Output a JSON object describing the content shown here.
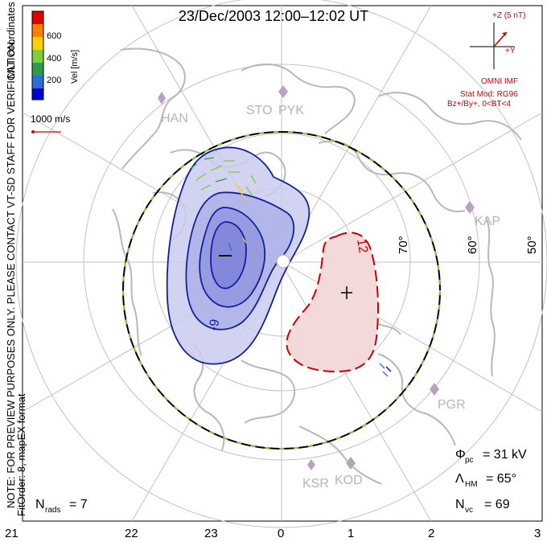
{
  "title": "23/Dec/2003 12:00–12:02 UT",
  "side_note": "NOTE: FOR PREVIEW PURPOSES ONLY. PLEASE CONTACT VT-SD STAFF FOR VERIFICATION.",
  "side_fit": "FitOrder: 8, mapEX format",
  "coords_label": "MLT coordinates",
  "colorbar": {
    "label": "Vel [m/s]",
    "ticks": [
      "600",
      "400",
      "200"
    ],
    "colors": [
      "#e00000",
      "#ff7f00",
      "#ffd000",
      "#7ecf3a",
      "#2e9a4a",
      "#2b6fd6",
      "#0000cc"
    ]
  },
  "scale_vector": {
    "label": "1000 m/s",
    "color": "#d40000"
  },
  "imf": {
    "clock_label": "+Z (5 nT)",
    "y_label": "+Y",
    "source": "OMNI IMF",
    "model": "Stat Mod: RG96",
    "conditions": "Bz+/By+, 0<BT<4"
  },
  "latitudes": [
    "70°",
    "60°",
    "50°"
  ],
  "mlt_axis": [
    "21",
    "22",
    "23",
    "0",
    "1",
    "2",
    "3"
  ],
  "stations": [
    "HAN",
    "STO",
    "PYK",
    "KAP",
    "PGR",
    "KSR",
    "KOD"
  ],
  "contour_labels": {
    "negative": "-9",
    "positive": "12"
  },
  "stats": {
    "phi_symbol": "Φ",
    "phi_sub": "pc",
    "phi_value": "= 31 kV",
    "lambda_symbol": "Λ",
    "lambda_sub": "HM",
    "lambda_value": "= 65°",
    "nvc_symbol": "N",
    "nvc_sub": "vc",
    "nvc_value": "= 69",
    "nrads_symbol": "N",
    "nrads_sub": "rads",
    "nrads_value": "= 7"
  },
  "colors": {
    "coast": "#b8b8b8",
    "grid": "#bdbdbd",
    "neg_contour": "#12209a",
    "neg_fill": "#c9cbef",
    "pos_contour": "#cc0000",
    "pos_fill": "#f3d9d9",
    "station": "#b7a3c0"
  }
}
